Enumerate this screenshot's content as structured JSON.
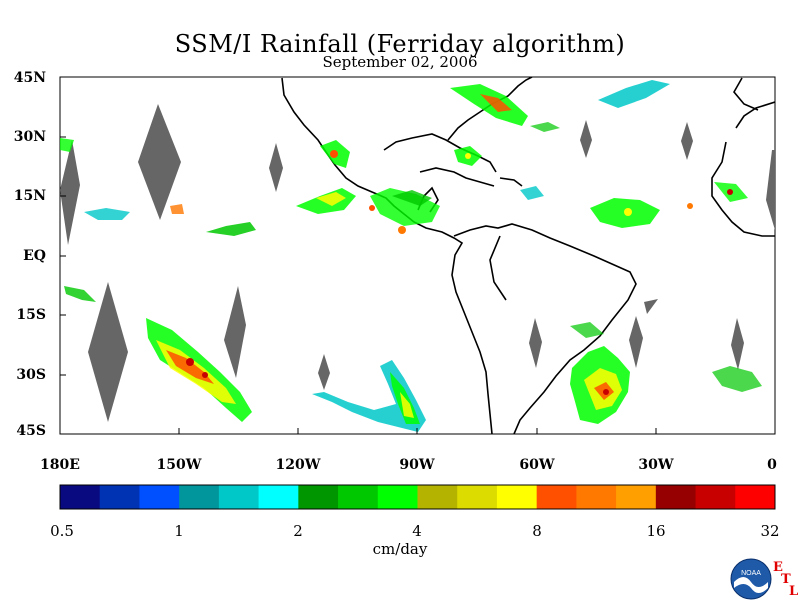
{
  "title": "SSM/I Rainfall (Ferriday algorithm)",
  "subtitle": "September 02, 2006",
  "lat_labels": [
    "45N",
    "30N",
    "15N",
    "EQ",
    "15S",
    "30S",
    "45S"
  ],
  "lon_labels": [
    "180E",
    "150W",
    "120W",
    "90W",
    "60W",
    "30W",
    "0"
  ],
  "colorbar": {
    "labels": [
      "0.5",
      "1",
      "2",
      "4",
      "8",
      "16",
      "32"
    ],
    "units": "cm/day",
    "colors": [
      "#0a0a80",
      "#0032b4",
      "#0050ff",
      "#00969b",
      "#00c8c8",
      "#00ffff",
      "#009600",
      "#00c800",
      "#00ff00",
      "#b4b400",
      "#dcdc00",
      "#ffff00",
      "#ff5000",
      "#ff7800",
      "#ffa000",
      "#960000",
      "#c80000",
      "#ff0000"
    ]
  },
  "logo": {
    "text": "NOAA",
    "letters": [
      "E",
      "T",
      "L"
    ]
  }
}
